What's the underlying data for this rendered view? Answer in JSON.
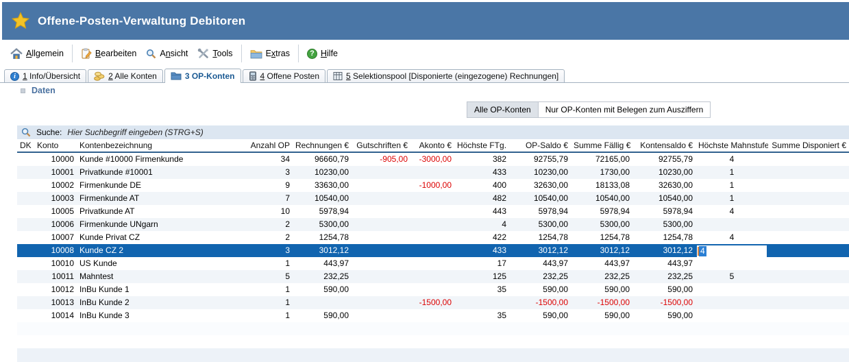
{
  "colors": {
    "titlebar_bg": "#4a76a6",
    "active_tab_text": "#1b5a93",
    "section_label_text": "#4a71a0",
    "selected_row_bg": "#1164af",
    "negative_text": "#dc0000",
    "search_bar_bg": "#dce6f1",
    "header_underline": "#31618e",
    "alt_row_bg": "#f1f5f9",
    "filter_button_active_bg": "#dde2e8",
    "star_icon": "#f3c327"
  },
  "titlebar": {
    "title": "Offene-Posten-Verwaltung Debitoren"
  },
  "menu": {
    "items": [
      {
        "pre": "",
        "u": "A",
        "post": "llgemein",
        "icon": "home-icon"
      },
      {
        "pre": "",
        "u": "B",
        "post": "earbeiten",
        "icon": "edit-icon"
      },
      {
        "pre": "A",
        "u": "n",
        "post": "sicht",
        "icon": "magnifier-icon"
      },
      {
        "pre": "",
        "u": "T",
        "post": "ools",
        "icon": "tools-icon"
      },
      {
        "pre": "E",
        "u": "x",
        "post": "tras",
        "icon": "folder-icon"
      },
      {
        "pre": "",
        "u": "H",
        "post": "ilfe",
        "icon": "help-icon"
      }
    ]
  },
  "tabs": [
    {
      "num": "1",
      "label": " Info/Übersicht",
      "icon": "info-icon",
      "active": false,
      "underline_num": true
    },
    {
      "num": "2",
      "label": " Alle Konten",
      "icon": "coins-icon",
      "active": false,
      "underline_num": true
    },
    {
      "num": "3",
      "label": " OP-Konten",
      "icon": "blue-folder-icon",
      "active": true,
      "underline_num": false
    },
    {
      "num": "4",
      "label": " Offene Posten",
      "icon": "device-icon",
      "active": false,
      "underline_num": true
    },
    {
      "num": "5",
      "label": " Selektionspool [Disponierte (eingezogene) Rechnungen]",
      "icon": "grid-icon",
      "active": false,
      "underline_num": true
    }
  ],
  "section_label": "Daten",
  "filter_buttons": [
    {
      "label": "Alle OP-Konten",
      "active": true
    },
    {
      "label": "Nur OP-Konten mit Belegen zum Ausziffern",
      "active": false
    }
  ],
  "search": {
    "label": "Suche:",
    "placeholder": "Hier Suchbegriff eingeben (STRG+S)"
  },
  "table": {
    "columns": [
      {
        "key": "dk",
        "label": "DK",
        "align": "left"
      },
      {
        "key": "konto",
        "label": "Konto",
        "align": "right"
      },
      {
        "key": "bezeichnung",
        "label": "Kontenbezeichnung",
        "align": "left"
      },
      {
        "key": "anzahl_op",
        "label": "Anzahl OP",
        "align": "right"
      },
      {
        "key": "rechnungen",
        "label": "Rechnungen €",
        "align": "right"
      },
      {
        "key": "gutschriften",
        "label": "Gutschriften €",
        "align": "right"
      },
      {
        "key": "akonto",
        "label": "Akonto €",
        "align": "right"
      },
      {
        "key": "hoechste_ftg",
        "label": "Höchste FTg.",
        "align": "right"
      },
      {
        "key": "op_saldo",
        "label": "OP-Saldo €",
        "align": "right"
      },
      {
        "key": "summe_faellig",
        "label": "Summe Fällig €",
        "align": "right"
      },
      {
        "key": "kontensaldo",
        "label": "Kontensaldo €",
        "align": "right"
      },
      {
        "key": "mahnstufe",
        "label": "Höchste Mahnstufe",
        "align": "center"
      },
      {
        "key": "disponiert",
        "label": "Summe Disponiert €",
        "align": "right"
      }
    ],
    "rows": [
      {
        "dk": "",
        "konto": "10000",
        "bezeichnung": "Kunde #10000 Firmenkunde",
        "anzahl_op": "34",
        "rechnungen": "96660,79",
        "gutschriften": "-905,00",
        "akonto": "-3000,00",
        "hoechste_ftg": "382",
        "op_saldo": "92755,79",
        "summe_faellig": "72165,00",
        "kontensaldo": "92755,79",
        "mahnstufe": "4",
        "disponiert": "",
        "selected": false
      },
      {
        "dk": "",
        "konto": "10001",
        "bezeichnung": "Privatkunde #10001",
        "anzahl_op": "3",
        "rechnungen": "10230,00",
        "gutschriften": "",
        "akonto": "",
        "hoechste_ftg": "433",
        "op_saldo": "10230,00",
        "summe_faellig": "1730,00",
        "kontensaldo": "10230,00",
        "mahnstufe": "1",
        "disponiert": "",
        "selected": false
      },
      {
        "dk": "",
        "konto": "10002",
        "bezeichnung": "Firmenkunde DE",
        "anzahl_op": "9",
        "rechnungen": "33630,00",
        "gutschriften": "",
        "akonto": "-1000,00",
        "hoechste_ftg": "400",
        "op_saldo": "32630,00",
        "summe_faellig": "18133,08",
        "kontensaldo": "32630,00",
        "mahnstufe": "1",
        "disponiert": "",
        "selected": false
      },
      {
        "dk": "",
        "konto": "10003",
        "bezeichnung": "Firmenkunde AT",
        "anzahl_op": "7",
        "rechnungen": "10540,00",
        "gutschriften": "",
        "akonto": "",
        "hoechste_ftg": "482",
        "op_saldo": "10540,00",
        "summe_faellig": "10540,00",
        "kontensaldo": "10540,00",
        "mahnstufe": "1",
        "disponiert": "",
        "selected": false
      },
      {
        "dk": "",
        "konto": "10005",
        "bezeichnung": "Privatkunde AT",
        "anzahl_op": "10",
        "rechnungen": "5978,94",
        "gutschriften": "",
        "akonto": "",
        "hoechste_ftg": "443",
        "op_saldo": "5978,94",
        "summe_faellig": "5978,94",
        "kontensaldo": "5978,94",
        "mahnstufe": "4",
        "disponiert": "",
        "selected": false
      },
      {
        "dk": "",
        "konto": "10006",
        "bezeichnung": "Firmenkunde UNgarn",
        "anzahl_op": "2",
        "rechnungen": "5300,00",
        "gutschriften": "",
        "akonto": "",
        "hoechste_ftg": "4",
        "op_saldo": "5300,00",
        "summe_faellig": "5300,00",
        "kontensaldo": "5300,00",
        "mahnstufe": "",
        "disponiert": "",
        "selected": false
      },
      {
        "dk": "",
        "konto": "10007",
        "bezeichnung": "Kunde Privat CZ",
        "anzahl_op": "2",
        "rechnungen": "1254,78",
        "gutschriften": "",
        "akonto": "",
        "hoechste_ftg": "422",
        "op_saldo": "1254,78",
        "summe_faellig": "1254,78",
        "kontensaldo": "1254,78",
        "mahnstufe": "4",
        "disponiert": "",
        "selected": false
      },
      {
        "dk": "",
        "konto": "10008",
        "bezeichnung": "Kunde CZ 2",
        "anzahl_op": "3",
        "rechnungen": "3012,12",
        "gutschriften": "",
        "akonto": "",
        "hoechste_ftg": "433",
        "op_saldo": "3012,12",
        "summe_faellig": "3012,12",
        "kontensaldo": "3012,12",
        "mahnstufe": "4",
        "disponiert": "",
        "selected": true
      },
      {
        "dk": "",
        "konto": "10010",
        "bezeichnung": "US Kunde",
        "anzahl_op": "1",
        "rechnungen": "443,97",
        "gutschriften": "",
        "akonto": "",
        "hoechste_ftg": "17",
        "op_saldo": "443,97",
        "summe_faellig": "443,97",
        "kontensaldo": "443,97",
        "mahnstufe": "",
        "disponiert": "",
        "selected": false
      },
      {
        "dk": "",
        "konto": "10011",
        "bezeichnung": "Mahntest",
        "anzahl_op": "5",
        "rechnungen": "232,25",
        "gutschriften": "",
        "akonto": "",
        "hoechste_ftg": "125",
        "op_saldo": "232,25",
        "summe_faellig": "232,25",
        "kontensaldo": "232,25",
        "mahnstufe": "5",
        "disponiert": "",
        "selected": false
      },
      {
        "dk": "",
        "konto": "10012",
        "bezeichnung": "InBu Kunde 1",
        "anzahl_op": "1",
        "rechnungen": "590,00",
        "gutschriften": "",
        "akonto": "",
        "hoechste_ftg": "35",
        "op_saldo": "590,00",
        "summe_faellig": "590,00",
        "kontensaldo": "590,00",
        "mahnstufe": "",
        "disponiert": "",
        "selected": false
      },
      {
        "dk": "",
        "konto": "10013",
        "bezeichnung": "InBu Kunde 2",
        "anzahl_op": "1",
        "rechnungen": "",
        "gutschriften": "",
        "akonto": "-1500,00",
        "hoechste_ftg": "",
        "op_saldo": "-1500,00",
        "summe_faellig": "-1500,00",
        "kontensaldo": "-1500,00",
        "mahnstufe": "",
        "disponiert": "",
        "selected": false
      },
      {
        "dk": "",
        "konto": "10014",
        "bezeichnung": "InBu Kunde 3",
        "anzahl_op": "1",
        "rechnungen": "590,00",
        "gutschriften": "",
        "akonto": "",
        "hoechste_ftg": "35",
        "op_saldo": "590,00",
        "summe_faellig": "590,00",
        "kontensaldo": "590,00",
        "mahnstufe": "",
        "disponiert": "",
        "selected": false
      }
    ]
  },
  "inline_editor": {
    "value": "4",
    "row_konto": "10008",
    "column": "mahnstufe"
  }
}
